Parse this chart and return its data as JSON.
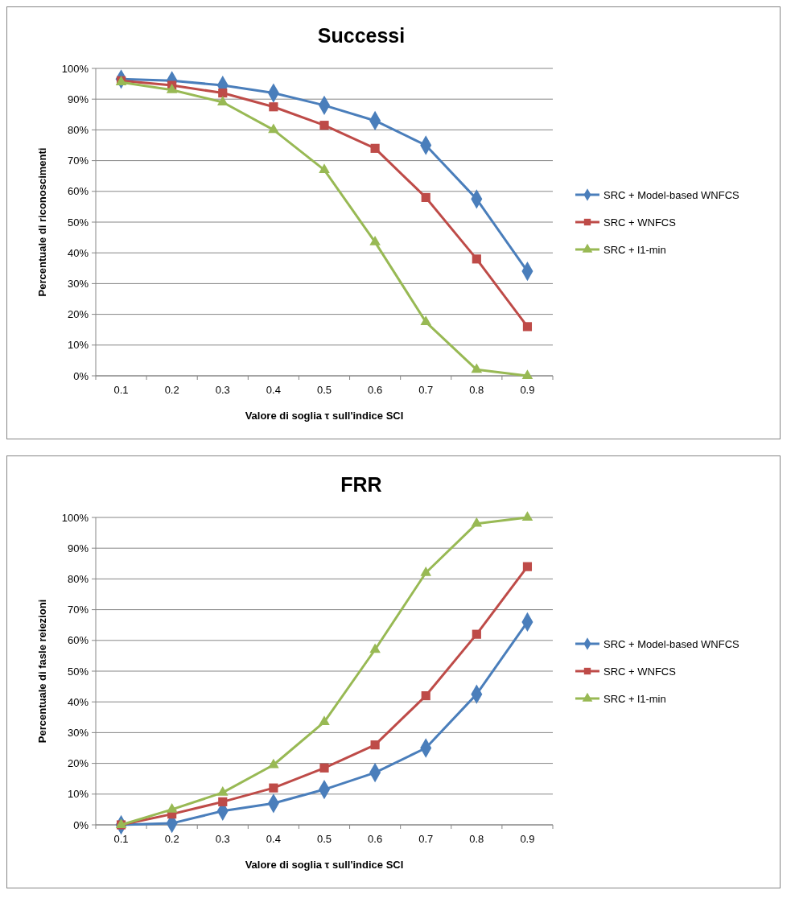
{
  "chart_data": [
    {
      "type": "line",
      "title": "Successi",
      "xlabel": "Valore di soglia τ sull'indice  SCI",
      "ylabel": "Percentuale di riconoscimenti",
      "categories": [
        "0.1",
        "0.2",
        "0.3",
        "0.4",
        "0.5",
        "0.6",
        "0.7",
        "0.8",
        "0.9"
      ],
      "ylim": [
        0,
        100
      ],
      "yticks": [
        {
          "value": 0,
          "label": "0%"
        },
        {
          "value": 10,
          "label": "10%"
        },
        {
          "value": 20,
          "label": "20%"
        },
        {
          "value": 30,
          "label": "30%"
        },
        {
          "value": 40,
          "label": "40%"
        },
        {
          "value": 50,
          "label": "50%"
        },
        {
          "value": 60,
          "label": "60%"
        },
        {
          "value": 70,
          "label": "70%"
        },
        {
          "value": 80,
          "label": "80%"
        },
        {
          "value": 90,
          "label": "90%"
        },
        {
          "value": 100,
          "label": "100%"
        }
      ],
      "grid": "y",
      "legend": "right",
      "line_style": "solid",
      "series": [
        {
          "name": "SRC + Model-based WNFCS",
          "color": "#4a7ebb",
          "marker": "diamond",
          "values": [
            96.5,
            96,
            94.5,
            92,
            88,
            83,
            75,
            57.5,
            34
          ]
        },
        {
          "name": "SRC + WNFCS",
          "color": "#be4b48",
          "marker": "square",
          "values": [
            96,
            94.5,
            92,
            87.5,
            81.5,
            74,
            58,
            38,
            16
          ]
        },
        {
          "name": "SRC + l1-min",
          "color": "#98b954",
          "marker": "triangle",
          "values": [
            95.5,
            93,
            89,
            80,
            67,
            43.5,
            17.5,
            2,
            0
          ]
        }
      ]
    },
    {
      "type": "line",
      "title": "FRR",
      "xlabel": "Valore di soglia τ sull'indice  SCI",
      "ylabel": "Percentuale di fasle reiezioni",
      "categories": [
        "0.1",
        "0.2",
        "0.3",
        "0.4",
        "0.5",
        "0.6",
        "0.7",
        "0.8",
        "0.9"
      ],
      "ylim": [
        0,
        100
      ],
      "yticks": [
        {
          "value": 0,
          "label": "0%"
        },
        {
          "value": 10,
          "label": "10%"
        },
        {
          "value": 20,
          "label": "20%"
        },
        {
          "value": 30,
          "label": "30%"
        },
        {
          "value": 40,
          "label": "40%"
        },
        {
          "value": 50,
          "label": "50%"
        },
        {
          "value": 60,
          "label": "60%"
        },
        {
          "value": 70,
          "label": "70%"
        },
        {
          "value": 80,
          "label": "80%"
        },
        {
          "value": 90,
          "label": "90%"
        },
        {
          "value": 100,
          "label": "100%"
        }
      ],
      "grid": "y",
      "legend": "right",
      "line_style": "solid",
      "series": [
        {
          "name": "SRC + Model-based WNFCS",
          "color": "#4a7ebb",
          "marker": "diamond",
          "values": [
            0,
            0.5,
            4.5,
            7,
            11.5,
            17,
            25,
            42.5,
            66
          ]
        },
        {
          "name": "SRC + WNFCS",
          "color": "#be4b48",
          "marker": "square",
          "values": [
            0,
            3.5,
            7.5,
            12,
            18.5,
            26,
            42,
            62,
            84
          ]
        },
        {
          "name": "SRC + l1-min",
          "color": "#98b954",
          "marker": "triangle",
          "values": [
            0,
            5,
            10.5,
            19.5,
            33.5,
            57,
            82,
            98,
            100
          ]
        }
      ]
    }
  ]
}
